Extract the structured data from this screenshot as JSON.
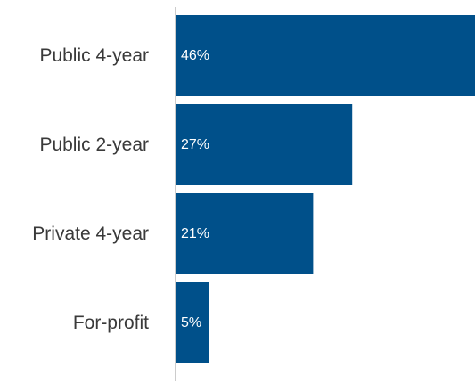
{
  "chart_data": {
    "type": "bar",
    "orientation": "horizontal",
    "categories": [
      "Public 4-year",
      "Public 2-year",
      "Private 4-year",
      "For-profit"
    ],
    "values": [
      46,
      27,
      21,
      5
    ],
    "value_labels": [
      "46%",
      "27%",
      "21%",
      "5%"
    ],
    "xlim": [
      0,
      46
    ],
    "grid": false,
    "bar_color": "#00508a",
    "axis_color": "#cccccc",
    "label_color": "#3a3a3a",
    "value_label_color": "#ffffff"
  }
}
